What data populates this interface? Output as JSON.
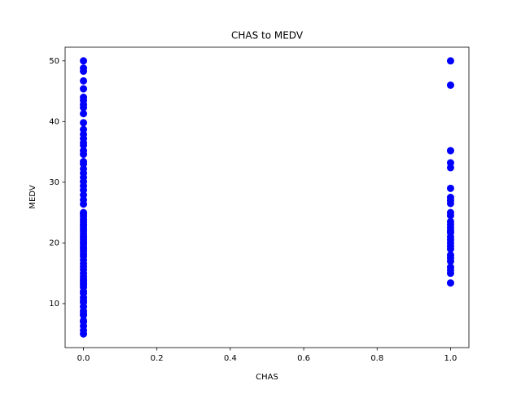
{
  "chart_data": {
    "type": "scatter",
    "title": "CHAS to MEDV",
    "xlabel": "CHAS",
    "ylabel": "MEDV",
    "color": "#0000ff",
    "x": [
      0,
      0,
      0,
      0,
      0,
      0,
      0,
      0,
      0,
      0,
      0,
      0,
      0,
      0,
      0,
      0,
      0,
      0,
      0,
      0,
      0,
      0,
      0,
      0,
      0,
      0,
      0,
      0,
      0,
      0,
      0,
      0,
      0,
      0,
      0,
      0,
      0,
      0,
      0,
      0,
      0,
      0,
      0,
      0,
      0,
      0,
      0,
      0,
      0,
      0,
      0,
      0,
      0,
      0,
      0,
      0,
      0,
      0,
      0,
      0,
      0,
      0,
      0,
      0,
      0,
      0,
      0,
      0,
      0,
      0,
      0,
      0,
      0,
      0,
      1,
      1,
      1,
      1,
      1,
      1,
      1,
      1,
      1,
      1,
      1,
      1,
      1,
      1,
      1,
      1,
      1,
      1,
      1,
      1,
      1,
      1,
      1,
      1,
      1,
      1,
      1,
      1
    ],
    "y": [
      5,
      5.6,
      6.3,
      7,
      7.2,
      8.1,
      8.4,
      8.8,
      9.5,
      10.2,
      10.5,
      11,
      11.7,
      12,
      12.7,
      13.1,
      13.4,
      13.8,
      14.1,
      14.5,
      15,
      15.6,
      16.1,
      16.6,
      17.2,
      17.8,
      18.2,
      18.7,
      19.1,
      19.4,
      19.8,
      20.1,
      20.5,
      20.9,
      21.2,
      21.6,
      22,
      22.4,
      22.8,
      23.1,
      23.5,
      23.9,
      24.4,
      24.8,
      25,
      26.4,
      27.1,
      27.9,
      28.7,
      29.4,
      30.1,
      30.8,
      31.5,
      32.2,
      33,
      33.4,
      34.6,
      35.2,
      36.1,
      36.5,
      37.2,
      37.9,
      38.7,
      39.8,
      41.3,
      42.3,
      42.8,
      43.5,
      44,
      45.4,
      46.7,
      48.3,
      48.8,
      50,
      50,
      46,
      35.2,
      33.2,
      32.4,
      29,
      27.5,
      27,
      26.5,
      25,
      24.5,
      23.5,
      23,
      22.5,
      22,
      21.7,
      21,
      20.5,
      20,
      19.5,
      19,
      18,
      17.5,
      17,
      16,
      15.5,
      15,
      13.4
    ],
    "xlim": [
      -0.05,
      1.05
    ],
    "ylim": [
      2.75,
      52.25
    ],
    "xticks": [
      {
        "value": 0,
        "label": "0.0"
      },
      {
        "value": 0.2,
        "label": "0.2"
      },
      {
        "value": 0.4,
        "label": "0.4"
      },
      {
        "value": 0.6,
        "label": "0.6"
      },
      {
        "value": 0.8,
        "label": "0.8"
      },
      {
        "value": 1,
        "label": "1.0"
      }
    ],
    "yticks": [
      10,
      20,
      30,
      40,
      50
    ]
  }
}
